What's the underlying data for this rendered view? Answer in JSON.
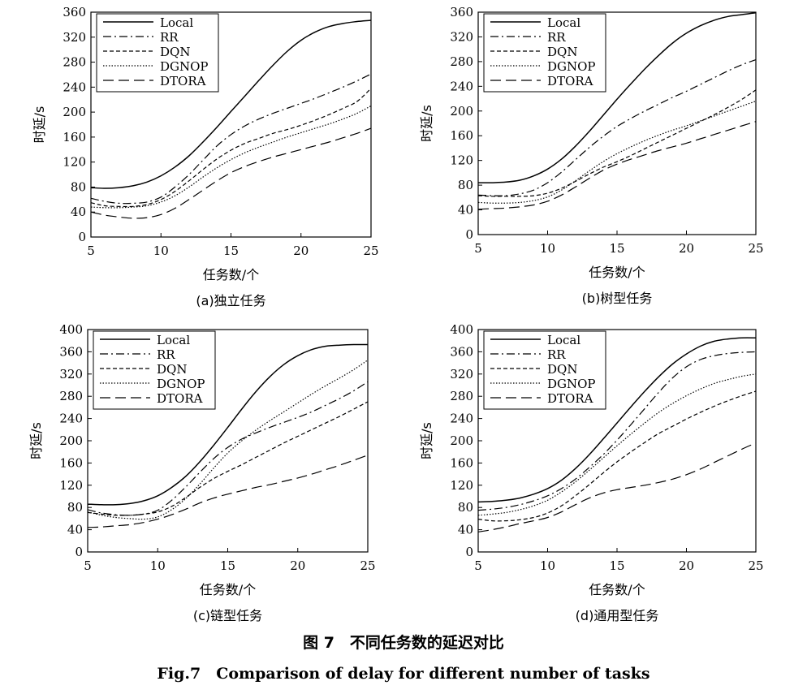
{
  "figure": {
    "caption_cn": "图 7　不同任务数的延迟对比",
    "caption_en": "Fig.7　Comparison of delay for different number of tasks"
  },
  "colors": {
    "line": "#000000",
    "background": "#ffffff"
  },
  "legend_order": [
    "Local",
    "RR",
    "DQN",
    "DGNOP",
    "DTORA"
  ],
  "chart_data": [
    {
      "type": "line",
      "panel": "a",
      "subtitle": "(a)独立任务",
      "xlabel": "任务数/个",
      "ylabel": "时延/s",
      "xlim": [
        5,
        25
      ],
      "ylim": [
        0,
        360
      ],
      "xticks": [
        5,
        10,
        15,
        20,
        25
      ],
      "yticks": [
        0,
        40,
        80,
        120,
        160,
        200,
        240,
        280,
        320,
        360
      ],
      "legend_position": "top-left",
      "grid": false,
      "x": [
        5,
        6,
        7,
        8,
        9,
        10,
        11,
        12,
        13,
        14,
        15,
        16,
        17,
        18,
        19,
        20,
        21,
        22,
        23,
        24,
        25
      ],
      "series": [
        {
          "name": "Local",
          "style": "solid",
          "values": [
            79,
            78,
            79,
            82,
            88,
            98,
            112,
            130,
            152,
            176,
            201,
            226,
            251,
            275,
            297,
            315,
            328,
            337,
            342,
            345,
            347
          ]
        },
        {
          "name": "RR",
          "style": "dashdot",
          "values": [
            62,
            57,
            54,
            54,
            56,
            64,
            80,
            100,
            123,
            146,
            164,
            178,
            189,
            198,
            206,
            214,
            222,
            231,
            240,
            250,
            261
          ]
        },
        {
          "name": "DQN",
          "style": "dashed",
          "values": [
            55,
            50,
            49,
            49,
            52,
            60,
            73,
            90,
            108,
            125,
            139,
            150,
            158,
            166,
            172,
            179,
            187,
            196,
            206,
            217,
            238
          ]
        },
        {
          "name": "DGNOP",
          "style": "dotted",
          "values": [
            48,
            47,
            47,
            48,
            50,
            56,
            66,
            80,
            96,
            111,
            124,
            135,
            144,
            152,
            160,
            167,
            174,
            181,
            189,
            198,
            210
          ]
        },
        {
          "name": "DTORA",
          "style": "longdash",
          "values": [
            40,
            35,
            32,
            30,
            31,
            36,
            46,
            60,
            75,
            90,
            103,
            113,
            121,
            128,
            134,
            140,
            146,
            152,
            159,
            166,
            174
          ]
        }
      ]
    },
    {
      "type": "line",
      "panel": "b",
      "subtitle": "(b)树型任务",
      "xlabel": "任务数/个",
      "ylabel": "时延/s",
      "xlim": [
        5,
        25
      ],
      "ylim": [
        0,
        360
      ],
      "xticks": [
        5,
        10,
        15,
        20,
        25
      ],
      "yticks": [
        0,
        40,
        80,
        120,
        160,
        200,
        240,
        280,
        320,
        360
      ],
      "legend_position": "top-left",
      "grid": false,
      "x": [
        5,
        6,
        7,
        8,
        9,
        10,
        11,
        12,
        13,
        14,
        15,
        16,
        17,
        18,
        19,
        20,
        21,
        22,
        23,
        24,
        25
      ],
      "series": [
        {
          "name": "Local",
          "style": "solid",
          "values": [
            84,
            84,
            85,
            88,
            95,
            106,
            122,
            143,
            167,
            193,
            219,
            244,
            268,
            290,
            310,
            326,
            338,
            347,
            353,
            356,
            359
          ]
        },
        {
          "name": "RR",
          "style": "dashdot",
          "values": [
            64,
            63,
            63,
            66,
            72,
            84,
            101,
            121,
            141,
            159,
            175,
            188,
            200,
            211,
            222,
            232,
            243,
            254,
            265,
            275,
            283
          ]
        },
        {
          "name": "DQN",
          "style": "dashed",
          "values": [
            63,
            62,
            62,
            62,
            63,
            67,
            75,
            86,
            98,
            109,
            118,
            128,
            139,
            150,
            161,
            172,
            183,
            194,
            206,
            219,
            234
          ]
        },
        {
          "name": "DGNOP",
          "style": "dotted",
          "values": [
            52,
            51,
            51,
            52,
            55,
            61,
            72,
            87,
            103,
            118,
            131,
            142,
            152,
            161,
            169,
            176,
            184,
            192,
            200,
            208,
            216
          ]
        },
        {
          "name": "DTORA",
          "style": "longdash",
          "values": [
            41,
            42,
            43,
            45,
            48,
            54,
            64,
            77,
            91,
            104,
            114,
            122,
            129,
            136,
            142,
            148,
            155,
            162,
            169,
            176,
            183
          ]
        }
      ]
    },
    {
      "type": "line",
      "panel": "c",
      "subtitle": "(c)链型任务",
      "xlabel": "任务数/个",
      "ylabel": "时延/s",
      "xlim": [
        5,
        25
      ],
      "ylim": [
        0,
        400
      ],
      "xticks": [
        5,
        10,
        15,
        20,
        25
      ],
      "yticks": [
        0,
        40,
        80,
        120,
        160,
        200,
        240,
        280,
        320,
        360,
        400
      ],
      "legend_position": "top-left",
      "grid": false,
      "x": [
        5,
        6,
        7,
        8,
        9,
        10,
        11,
        12,
        13,
        14,
        15,
        16,
        17,
        18,
        19,
        20,
        21,
        22,
        23,
        24,
        25
      ],
      "series": [
        {
          "name": "Local",
          "style": "solid",
          "values": [
            86,
            85,
            85,
            87,
            92,
            101,
            116,
            136,
            162,
            192,
            224,
            257,
            288,
            315,
            337,
            353,
            364,
            370,
            372,
            373,
            373
          ]
        },
        {
          "name": "RR",
          "style": "dashdot",
          "values": [
            76,
            70,
            67,
            66,
            68,
            75,
            93,
            117,
            143,
            168,
            188,
            203,
            214,
            224,
            233,
            242,
            252,
            264,
            276,
            290,
            306
          ]
        },
        {
          "name": "DQN",
          "style": "dashed",
          "values": [
            71,
            68,
            66,
            66,
            68,
            72,
            82,
            98,
            116,
            132,
            145,
            157,
            170,
            183,
            196,
            208,
            220,
            232,
            244,
            257,
            270
          ]
        },
        {
          "name": "DGNOP",
          "style": "dotted",
          "values": [
            72,
            66,
            62,
            60,
            59,
            63,
            76,
            96,
            122,
            151,
            178,
            200,
            219,
            236,
            252,
            268,
            284,
            299,
            313,
            328,
            345
          ]
        },
        {
          "name": "DTORA",
          "style": "longdash",
          "values": [
            44,
            45,
            47,
            49,
            53,
            59,
            67,
            77,
            88,
            97,
            104,
            110,
            116,
            121,
            127,
            133,
            140,
            148,
            156,
            165,
            174
          ]
        }
      ]
    },
    {
      "type": "line",
      "panel": "d",
      "subtitle": "(d)通用型任务",
      "xlabel": "任务数/个",
      "ylabel": "时延/s",
      "xlim": [
        5,
        25
      ],
      "ylim": [
        0,
        400
      ],
      "xticks": [
        5,
        10,
        15,
        20,
        25
      ],
      "yticks": [
        0,
        40,
        80,
        120,
        160,
        200,
        240,
        280,
        320,
        360,
        400
      ],
      "legend_position": "top-left",
      "grid": false,
      "x": [
        5,
        6,
        7,
        8,
        9,
        10,
        11,
        12,
        13,
        14,
        15,
        16,
        17,
        18,
        19,
        20,
        21,
        22,
        23,
        24,
        25
      ],
      "series": [
        {
          "name": "Local",
          "style": "solid",
          "values": [
            90,
            91,
            93,
            97,
            104,
            114,
            129,
            150,
            175,
            203,
            232,
            261,
            289,
            315,
            338,
            356,
            370,
            379,
            383,
            385,
            385
          ]
        },
        {
          "name": "RR",
          "style": "dashdot",
          "values": [
            75,
            77,
            80,
            85,
            92,
            101,
            114,
            131,
            152,
            175,
            201,
            229,
            258,
            287,
            313,
            333,
            346,
            353,
            357,
            359,
            360
          ]
        },
        {
          "name": "DQN",
          "style": "dashed",
          "values": [
            59,
            56,
            56,
            58,
            62,
            70,
            83,
            101,
            121,
            142,
            162,
            180,
            197,
            213,
            226,
            239,
            251,
            262,
            272,
            281,
            289
          ]
        },
        {
          "name": "DGNOP",
          "style": "dotted",
          "values": [
            66,
            68,
            71,
            76,
            83,
            93,
            108,
            126,
            147,
            169,
            191,
            212,
            232,
            251,
            267,
            281,
            293,
            303,
            310,
            316,
            320
          ]
        },
        {
          "name": "DTORA",
          "style": "longdash",
          "values": [
            36,
            40,
            45,
            51,
            56,
            62,
            72,
            85,
            97,
            106,
            112,
            116,
            120,
            125,
            131,
            139,
            149,
            161,
            173,
            185,
            196
          ]
        }
      ]
    }
  ]
}
